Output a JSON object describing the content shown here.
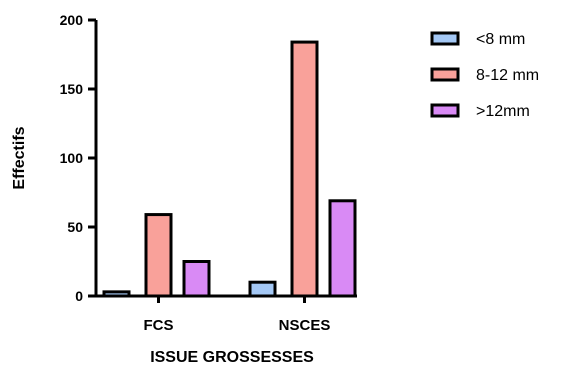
{
  "chart_data": {
    "type": "bar",
    "categories": [
      "FCS",
      "NSCES"
    ],
    "series": [
      {
        "name": "<8 mm",
        "values": [
          3,
          10
        ],
        "color": "#a4c8f5"
      },
      {
        "name": "8-12 mm",
        "values": [
          59,
          184
        ],
        "color": "#f9a19a"
      },
      {
        "name": ">12mm",
        "values": [
          25,
          69
        ],
        "color": "#d98af5"
      }
    ],
    "xlabel": "ISSUE GROSSESSES",
    "ylabel": "Effectifs",
    "ylim": [
      0,
      200
    ],
    "yticks": [
      0,
      50,
      100,
      150,
      200
    ],
    "grid": false,
    "legend_position": "top-right"
  }
}
